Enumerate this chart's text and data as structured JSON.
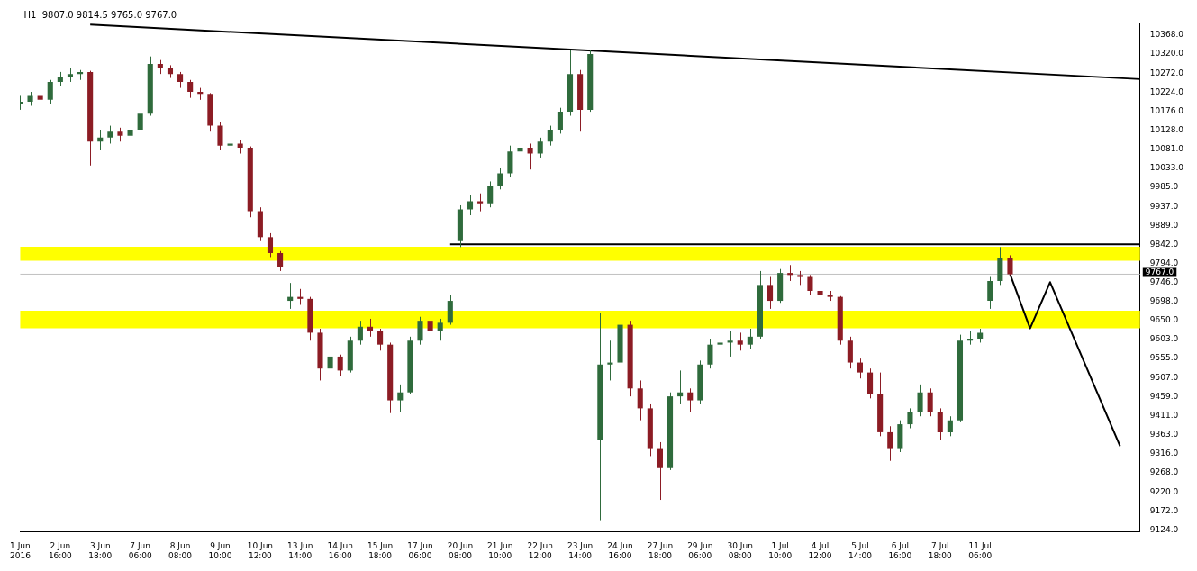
{
  "chart_data": {
    "type": "candlestick",
    "title": "H1  9807.0 9814.5 9765.0 9767.0",
    "categories": [
      "1 Jun 2016",
      null,
      null,
      null,
      "2 Jun 16:00",
      null,
      null,
      null,
      "3 Jun 18:00",
      null,
      null,
      null,
      "7 Jun 06:00",
      null,
      null,
      null,
      "8 Jun 08:00",
      null,
      null,
      null,
      "9 Jun 10:00",
      null,
      null,
      null,
      "10 Jun 12:00",
      null,
      null,
      null,
      "13 Jun 14:00",
      null,
      null,
      null,
      "14 Jun 16:00",
      null,
      null,
      null,
      "15 Jun 18:00",
      null,
      null,
      null,
      "17 Jun 06:00",
      null,
      null,
      null,
      "20 Jun 08:00",
      null,
      null,
      null,
      "21 Jun 10:00",
      null,
      null,
      null,
      "22 Jun 12:00",
      null,
      null,
      null,
      "23 Jun 14:00",
      null,
      null,
      null,
      "24 Jun 16:00",
      null,
      null,
      null,
      "27 Jun 18:00",
      null,
      null,
      null,
      "29 Jun 06:00",
      null,
      null,
      null,
      "30 Jun 08:00",
      null,
      null,
      null,
      "1 Jul 10:00",
      null,
      null,
      null,
      "4 Jul 12:00",
      null,
      null,
      null,
      "5 Jul 14:00",
      null,
      null,
      null,
      "6 Jul 16:00",
      null,
      null,
      null,
      "7 Jul 18:00",
      null,
      null,
      null,
      "11 Jul 06:00",
      null,
      null,
      null,
      null,
      null,
      null,
      null,
      null,
      null,
      null,
      null,
      null,
      null,
      null,
      null,
      null
    ],
    "ohlc": [
      [
        10195,
        10215,
        10180,
        10200
      ],
      [
        10200,
        10225,
        10190,
        10215
      ],
      [
        10215,
        10230,
        10170,
        10205
      ],
      [
        10205,
        10255,
        10195,
        10250
      ],
      [
        10250,
        10275,
        10240,
        10262
      ],
      [
        10262,
        10285,
        10250,
        10270
      ],
      [
        10270,
        10280,
        10255,
        10275
      ],
      [
        10275,
        10278,
        10040,
        10100
      ],
      [
        10100,
        10130,
        10080,
        10110
      ],
      [
        10110,
        10140,
        10095,
        10125
      ],
      [
        10125,
        10135,
        10100,
        10115
      ],
      [
        10115,
        10145,
        10105,
        10130
      ],
      [
        10130,
        10180,
        10120,
        10170
      ],
      [
        10170,
        10314,
        10165,
        10295
      ],
      [
        10295,
        10305,
        10270,
        10285
      ],
      [
        10285,
        10292,
        10260,
        10270
      ],
      [
        10270,
        10275,
        10235,
        10250
      ],
      [
        10250,
        10255,
        10210,
        10225
      ],
      [
        10225,
        10235,
        10205,
        10220
      ],
      [
        10220,
        10222,
        10125,
        10140
      ],
      [
        10140,
        10150,
        10080,
        10090
      ],
      [
        10090,
        10110,
        10075,
        10095
      ],
      [
        10095,
        10105,
        10070,
        10085
      ],
      [
        10085,
        10088,
        9910,
        9925
      ],
      [
        9925,
        9935,
        9850,
        9860
      ],
      [
        9860,
        9870,
        9810,
        9820
      ],
      [
        9820,
        9825,
        9775,
        9785
      ],
      [
        9700,
        9745,
        9680,
        9710
      ],
      [
        9710,
        9730,
        9690,
        9705
      ],
      [
        9705,
        9710,
        9600,
        9620
      ],
      [
        9620,
        9630,
        9500,
        9530
      ],
      [
        9530,
        9575,
        9515,
        9560
      ],
      [
        9560,
        9565,
        9510,
        9525
      ],
      [
        9525,
        9610,
        9520,
        9600
      ],
      [
        9600,
        9650,
        9590,
        9635
      ],
      [
        9635,
        9655,
        9610,
        9625
      ],
      [
        9625,
        9630,
        9575,
        9590
      ],
      [
        9590,
        9595,
        9418,
        9450
      ],
      [
        9450,
        9490,
        9420,
        9470
      ],
      [
        9470,
        9610,
        9465,
        9600
      ],
      [
        9600,
        9660,
        9590,
        9650
      ],
      [
        9650,
        9665,
        9610,
        9625
      ],
      [
        9625,
        9655,
        9600,
        9645
      ],
      [
        9645,
        9715,
        9640,
        9700
      ],
      [
        9850,
        9940,
        9835,
        9930
      ],
      [
        9930,
        9965,
        9915,
        9950
      ],
      [
        9950,
        9970,
        9925,
        9945
      ],
      [
        9945,
        10000,
        9935,
        9990
      ],
      [
        9990,
        10035,
        9980,
        10020
      ],
      [
        10020,
        10090,
        10010,
        10075
      ],
      [
        10075,
        10100,
        10060,
        10085
      ],
      [
        10085,
        10095,
        10030,
        10070
      ],
      [
        10070,
        10110,
        10060,
        10100
      ],
      [
        10100,
        10140,
        10090,
        10130
      ],
      [
        10130,
        10185,
        10120,
        10175
      ],
      [
        10175,
        10330,
        10165,
        10270
      ],
      [
        10270,
        10280,
        10125,
        10180
      ],
      [
        10180,
        10330,
        10175,
        10320
      ],
      [
        9350,
        9670,
        9149,
        9540
      ],
      [
        9540,
        9600,
        9500,
        9545
      ],
      [
        9545,
        9690,
        9535,
        9640
      ],
      [
        9640,
        9650,
        9460,
        9480
      ],
      [
        9480,
        9500,
        9400,
        9430
      ],
      [
        9430,
        9440,
        9310,
        9330
      ],
      [
        9330,
        9345,
        9200,
        9280
      ],
      [
        9280,
        9470,
        9275,
        9460
      ],
      [
        9460,
        9525,
        9440,
        9470
      ],
      [
        9470,
        9480,
        9420,
        9450
      ],
      [
        9450,
        9550,
        9440,
        9540
      ],
      [
        9540,
        9605,
        9530,
        9590
      ],
      [
        9590,
        9615,
        9570,
        9595
      ],
      [
        9595,
        9625,
        9560,
        9600
      ],
      [
        9600,
        9620,
        9575,
        9590
      ],
      [
        9590,
        9630,
        9580,
        9610
      ],
      [
        9610,
        9775,
        9605,
        9740
      ],
      [
        9740,
        9760,
        9680,
        9700
      ],
      [
        9700,
        9780,
        9695,
        9770
      ],
      [
        9770,
        9790,
        9750,
        9765
      ],
      [
        9765,
        9775,
        9740,
        9760
      ],
      [
        9760,
        9765,
        9715,
        9725
      ],
      [
        9725,
        9735,
        9700,
        9715
      ],
      [
        9715,
        9725,
        9700,
        9710
      ],
      [
        9710,
        9712,
        9590,
        9600
      ],
      [
        9600,
        9610,
        9530,
        9545
      ],
      [
        9545,
        9555,
        9505,
        9520
      ],
      [
        9520,
        9530,
        9455,
        9465
      ],
      [
        9465,
        9520,
        9360,
        9370
      ],
      [
        9370,
        9385,
        9298,
        9330
      ],
      [
        9330,
        9400,
        9320,
        9390
      ],
      [
        9390,
        9430,
        9380,
        9420
      ],
      [
        9420,
        9490,
        9410,
        9470
      ],
      [
        9470,
        9480,
        9410,
        9420
      ],
      [
        9420,
        9430,
        9350,
        9370
      ],
      [
        9370,
        9410,
        9360,
        9400
      ],
      [
        9400,
        9615,
        9395,
        9600
      ],
      [
        9600,
        9625,
        9590,
        9605
      ],
      [
        9605,
        9630,
        9595,
        9620
      ],
      [
        9700,
        9760,
        9680,
        9750
      ],
      [
        9750,
        9835,
        9740,
        9807
      ],
      [
        9807,
        9814.5,
        9765,
        9767
      ],
      null,
      null,
      null,
      null,
      null,
      null,
      null,
      null,
      null,
      null,
      null,
      null,
      null
    ],
    "series": [
      {
        "type": "line",
        "color": "#000000",
        "values": [
          null,
          null,
          null,
          null,
          null,
          null,
          null,
          10394,
          null,
          null,
          null,
          null,
          null,
          null,
          null,
          null,
          null,
          null,
          null,
          null,
          null,
          null,
          null,
          null,
          null,
          null,
          null,
          null,
          null,
          null,
          null,
          null,
          null,
          null,
          null,
          null,
          null,
          null,
          null,
          null,
          null,
          null,
          null,
          null,
          null,
          null,
          null,
          null,
          null,
          null,
          null,
          null,
          null,
          null,
          null,
          null,
          null,
          null,
          null,
          null,
          null,
          null,
          null,
          null,
          null,
          null,
          null,
          null,
          null,
          null,
          null,
          null,
          null,
          null,
          null,
          null,
          null,
          null,
          null,
          null,
          null,
          null,
          null,
          null,
          null,
          null,
          null,
          null,
          null,
          null,
          null,
          null,
          null,
          null,
          null,
          null,
          null,
          null,
          null,
          null,
          null,
          null,
          null,
          null,
          null,
          null,
          null,
          null,
          null,
          null,
          null,
          null,
          10257
        ]
      },
      {
        "type": "line",
        "color": "#000000",
        "values": [
          null,
          null,
          null,
          null,
          null,
          null,
          null,
          null,
          null,
          null,
          null,
          null,
          null,
          null,
          null,
          null,
          null,
          null,
          null,
          null,
          null,
          null,
          null,
          null,
          null,
          null,
          null,
          null,
          null,
          null,
          null,
          null,
          null,
          null,
          null,
          null,
          null,
          null,
          null,
          null,
          null,
          null,
          null,
          9842,
          null,
          null,
          null,
          null,
          null,
          null,
          null,
          null,
          null,
          null,
          null,
          null,
          null,
          null,
          null,
          null,
          null,
          null,
          null,
          null,
          null,
          null,
          null,
          null,
          null,
          null,
          null,
          null,
          null,
          null,
          null,
          null,
          null,
          null,
          null,
          null,
          null,
          null,
          null,
          null,
          null,
          null,
          null,
          null,
          null,
          null,
          null,
          null,
          null,
          null,
          null,
          null,
          null,
          null,
          null,
          null,
          null,
          null,
          null,
          null,
          null,
          null,
          null,
          null,
          null,
          null,
          null,
          null,
          9842
        ]
      },
      {
        "type": "line",
        "color": "#000000",
        "values": [
          null,
          null,
          null,
          null,
          null,
          null,
          null,
          null,
          null,
          null,
          null,
          null,
          null,
          null,
          null,
          null,
          null,
          null,
          null,
          null,
          null,
          null,
          null,
          null,
          null,
          null,
          null,
          null,
          null,
          null,
          null,
          null,
          null,
          null,
          null,
          null,
          null,
          null,
          null,
          null,
          null,
          null,
          null,
          null,
          null,
          null,
          null,
          null,
          null,
          null,
          null,
          null,
          null,
          null,
          null,
          null,
          null,
          null,
          null,
          null,
          null,
          null,
          null,
          null,
          null,
          null,
          null,
          null,
          null,
          null,
          null,
          null,
          null,
          null,
          null,
          null,
          null,
          null,
          null,
          null,
          null,
          null,
          null,
          null,
          null,
          null,
          null,
          null,
          null,
          null,
          null,
          null,
          null,
          null,
          null,
          null,
          null,
          null,
          null,
          9767,
          null,
          9631,
          null,
          9747,
          null,
          null,
          null,
          null,
          null,
          null,
          9335,
          null,
          null
        ]
      }
    ],
    "bands": [
      {
        "axis": "y",
        "from": 9801,
        "to": 9836,
        "color": "#ffff00"
      },
      {
        "axis": "y",
        "from": 9631,
        "to": 9675,
        "color": "#ffff00"
      }
    ],
    "ref_lines": [
      {
        "axis": "y",
        "value": 9767,
        "label": "9767.0",
        "color": "#c0c0c0"
      }
    ],
    "ylim": [
      9120,
      10397
    ],
    "yticks": [
      {
        "value": 10368,
        "label": "10368.0"
      },
      {
        "value": 10320,
        "label": "10320.0"
      },
      {
        "value": 10272,
        "label": "10272.0"
      },
      {
        "value": 10224,
        "label": "10224.0"
      },
      {
        "value": 10176,
        "label": "10176.0"
      },
      {
        "value": 10128,
        "label": "10128.0"
      },
      {
        "value": 10081,
        "label": "10081.0"
      },
      {
        "value": 10033,
        "label": "10033.0"
      },
      {
        "value": 9985,
        "label": "9985.0"
      },
      {
        "value": 9937,
        "label": "9937.0"
      },
      {
        "value": 9889,
        "label": "9889.0"
      },
      {
        "value": 9842,
        "label": "9842.0"
      },
      {
        "value": 9794,
        "label": "9794.0"
      },
      {
        "value": 9746,
        "label": "9746.0"
      },
      {
        "value": 9698,
        "label": "9698.0"
      },
      {
        "value": 9650,
        "label": "9650.0"
      },
      {
        "value": 9603,
        "label": "9603.0"
      },
      {
        "value": 9555,
        "label": "9555.0"
      },
      {
        "value": 9507,
        "label": "9507.0"
      },
      {
        "value": 9459,
        "label": "9459.0"
      },
      {
        "value": 9411,
        "label": "9411.0"
      },
      {
        "value": 9363,
        "label": "9363.0"
      },
      {
        "value": 9316,
        "label": "9316.0"
      },
      {
        "value": 9268,
        "label": "9268.0"
      },
      {
        "value": 9220,
        "label": "9220.0"
      },
      {
        "value": 9172,
        "label": "9172.0"
      },
      {
        "value": 9124,
        "label": "9124.0"
      }
    ],
    "marker": "none"
  }
}
